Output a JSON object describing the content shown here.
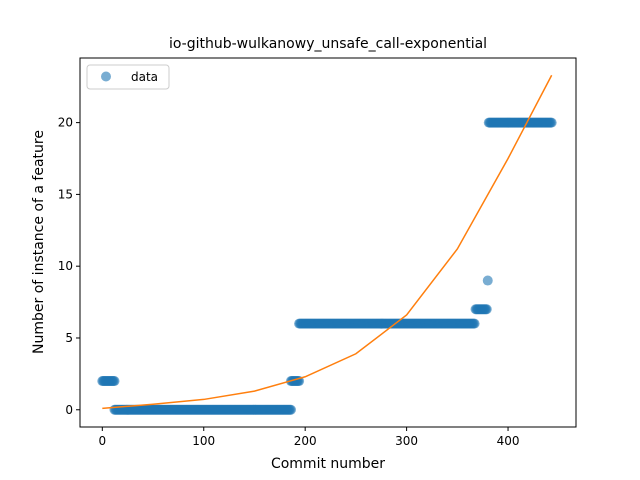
{
  "chart_data": {
    "type": "scatter",
    "title": "io-github-wulkanowy_unsafe_call-exponential",
    "xlabel": "Commit number",
    "ylabel": "Number of instance of a feature",
    "xlim": [
      -22,
      467
    ],
    "ylim": [
      -1.2,
      24.5
    ],
    "xticks": [
      0,
      100,
      200,
      300,
      400
    ],
    "yticks": [
      0,
      5,
      10,
      15,
      20
    ],
    "grid": false,
    "legend_position": "top-left",
    "colors": {
      "data": "#1f77b4",
      "fit": "#ff7f0e"
    },
    "series": [
      {
        "name": "data",
        "kind": "points",
        "segments": [
          {
            "x_start": 0,
            "x_end": 12,
            "y": 2
          },
          {
            "x_start": 12,
            "x_end": 186,
            "y": 0
          },
          {
            "x_start": 186,
            "x_end": 194,
            "y": 2
          },
          {
            "x_start": 194,
            "x_end": 367,
            "y": 6
          },
          {
            "x_start": 368,
            "x_end": 379,
            "y": 7
          },
          {
            "x_start": 380,
            "x_end": 380,
            "y": 9
          },
          {
            "x_start": 381,
            "x_end": 443,
            "y": 20
          }
        ]
      },
      {
        "kind": "fitted-curve",
        "model": "exponential",
        "x": [
          0,
          50,
          100,
          150,
          200,
          250,
          300,
          350,
          400,
          443
        ],
        "y": [
          0.1,
          0.38,
          0.72,
          1.3,
          2.3,
          3.9,
          6.6,
          11.2,
          17.5,
          23.3
        ]
      }
    ],
    "legend": [
      "data"
    ]
  }
}
